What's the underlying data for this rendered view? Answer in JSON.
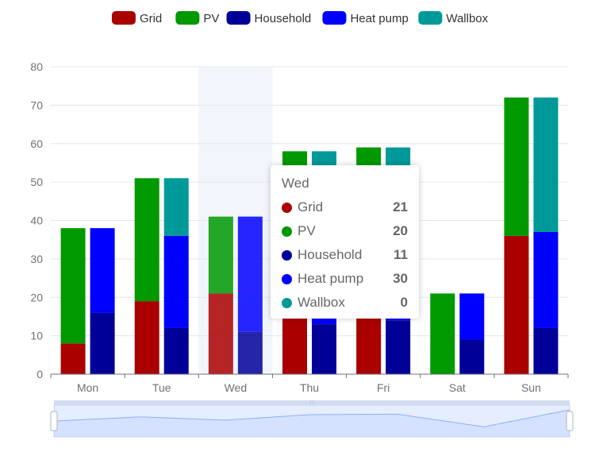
{
  "chart_data": {
    "type": "bar",
    "stacked": true,
    "categories": [
      "Mon",
      "Tue",
      "Wed",
      "Thu",
      "Fri",
      "Sat",
      "Sun"
    ],
    "ylim": [
      0,
      80
    ],
    "yticks": [
      0,
      10,
      20,
      30,
      40,
      50,
      60,
      70,
      80
    ],
    "grid": true,
    "legend_position": "top",
    "series": [
      {
        "name": "Grid",
        "stack": "source",
        "color": "#aa0000",
        "values": [
          8,
          19,
          21,
          16,
          15,
          0,
          36
        ]
      },
      {
        "name": "PV",
        "stack": "source",
        "color": "#009900",
        "values": [
          30,
          32,
          20,
          42,
          44,
          21,
          36
        ]
      },
      {
        "name": "Household",
        "stack": "consumption",
        "color": "#000099",
        "values": [
          16,
          12,
          11,
          13,
          14,
          9,
          12
        ]
      },
      {
        "name": "Heat pump",
        "stack": "consumption",
        "color": "#0000ff",
        "values": [
          22,
          24,
          30,
          30,
          30,
          12,
          25
        ]
      },
      {
        "name": "Wallbox",
        "stack": "consumption",
        "color": "#009999",
        "values": [
          0,
          15,
          0,
          15,
          15,
          0,
          35
        ]
      }
    ],
    "highlighted_category": "Wed",
    "tooltip": {
      "title": "Wed",
      "rows": [
        {
          "name": "Grid",
          "value": "21",
          "color": "#aa0000"
        },
        {
          "name": "PV",
          "value": "20",
          "color": "#009900"
        },
        {
          "name": "Household",
          "value": "11",
          "color": "#000099"
        },
        {
          "name": "Heat pump",
          "value": "30",
          "color": "#0000ff"
        },
        {
          "name": "Wallbox",
          "value": "0",
          "color": "#009999"
        }
      ]
    },
    "data_zoom": {
      "start_percent": 0,
      "end_percent": 100
    }
  }
}
